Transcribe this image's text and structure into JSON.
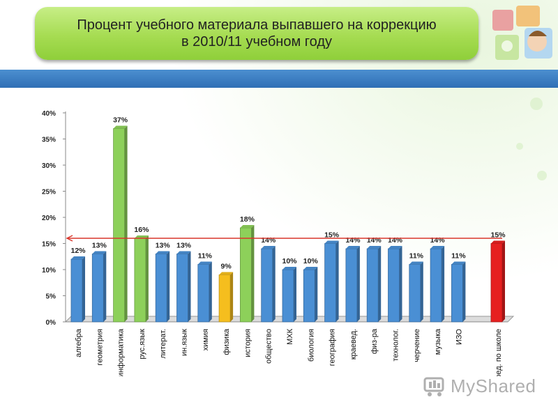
{
  "slide": {
    "title_line1": "Процент учебного материала выпавшего на коррекцию",
    "title_line2": "в 2010/11 учебном году",
    "watermark_text": "MyShared"
  },
  "colors": {
    "bar_blue": "#4a8fd4",
    "bar_green": "#8dd05a",
    "bar_yellow": "#f5be1e",
    "bar_red": "#e62020",
    "reference_line": "#d9352a",
    "title_green": "#a6dc52",
    "band_blue": "#3a7cc3"
  },
  "chart_data": {
    "type": "bar",
    "categories": [
      "алгебра",
      "геометрия",
      "информатика",
      "рус.язык",
      "литерат.",
      "ин.язык",
      "химия",
      "физика",
      "история",
      "обществo",
      "МХК",
      "биология",
      "география",
      "краевед.",
      "физ-ра",
      "технолог.",
      "черчение",
      "музыка",
      "ИЗО",
      "сред. по школе"
    ],
    "values": [
      12,
      13,
      37,
      16,
      13,
      13,
      11,
      9,
      18,
      14,
      10,
      10,
      15,
      14,
      14,
      14,
      11,
      14,
      11,
      15
    ],
    "value_labels": [
      "12%",
      "13%",
      "37%",
      "16%",
      "13%",
      "13%",
      "11%",
      "9%",
      "18%",
      "14%",
      "10%",
      "10%",
      "15%",
      "14%",
      "14%",
      "14%",
      "11%",
      "14%",
      "11%",
      "15%"
    ],
    "bar_colors": [
      "blue",
      "blue",
      "green",
      "green",
      "blue",
      "blue",
      "blue",
      "yellow",
      "green",
      "blue",
      "blue",
      "blue",
      "blue",
      "blue",
      "blue",
      "blue",
      "blue",
      "blue",
      "blue",
      "red"
    ],
    "ylim": [
      0,
      40
    ],
    "yticks": [
      "0%",
      "5%",
      "10%",
      "15%",
      "20%",
      "25%",
      "30%",
      "35%",
      "40%"
    ],
    "reference_line_value": 16,
    "grid": false,
    "legend": "none",
    "title": "",
    "xlabel": "",
    "ylabel": ""
  }
}
